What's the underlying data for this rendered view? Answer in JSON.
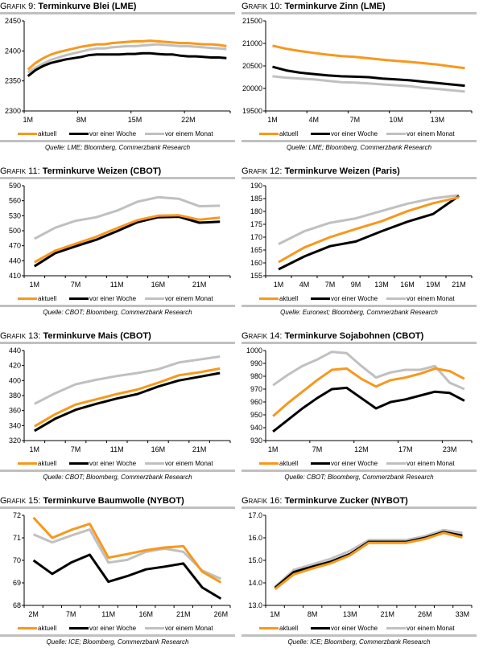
{
  "legend": {
    "series": [
      {
        "name": "aktuell",
        "color": "#f7981d"
      },
      {
        "name": "vor einer Woche",
        "color": "#000000"
      },
      {
        "name": "vor einem Monat",
        "color": "#c0c0c0"
      }
    ]
  },
  "chart_data": [
    {
      "id": "grafik9",
      "prefix": "Grafik 9:",
      "title": "Terminkurve Blei (LME)",
      "type": "line",
      "source": "Quelle: LME; Bloomberg, Commerzbank Research",
      "ylim": [
        2300,
        2450
      ],
      "yticks": [
        2300,
        2350,
        2400,
        2450
      ],
      "yformat": 0,
      "xtick_labels": [
        "1M",
        "8M",
        "15M",
        "22M"
      ],
      "xtick_index": [
        0,
        7,
        14,
        21
      ],
      "n": 27,
      "series": [
        {
          "name": "aktuell",
          "values": [
            2369,
            2380,
            2388,
            2394,
            2398,
            2401,
            2404,
            2407,
            2409,
            2411,
            2411,
            2413,
            2414,
            2415,
            2416,
            2416,
            2417,
            2416,
            2415,
            2414,
            2413,
            2413,
            2412,
            2411,
            2411,
            2410,
            2408
          ]
        },
        {
          "name": "vor einer Woche",
          "values": [
            2358,
            2368,
            2375,
            2380,
            2383,
            2386,
            2388,
            2390,
            2393,
            2394,
            2394,
            2394,
            2394,
            2395,
            2395,
            2396,
            2396,
            2395,
            2394,
            2394,
            2392,
            2391,
            2391,
            2390,
            2389,
            2389,
            2388
          ]
        },
        {
          "name": "vor einem Monat",
          "values": [
            2364,
            2372,
            2379,
            2385,
            2389,
            2393,
            2396,
            2399,
            2402,
            2404,
            2404,
            2406,
            2407,
            2408,
            2408,
            2409,
            2410,
            2411,
            2410,
            2409,
            2408,
            2408,
            2407,
            2406,
            2405,
            2404,
            2403
          ]
        }
      ]
    },
    {
      "id": "grafik10",
      "prefix": "Grafik 10:",
      "title": "Terminkurve Zinn (LME)",
      "type": "line",
      "source": "Quelle: LME; Bloomberg, Commerzbank Research",
      "ylim": [
        19500,
        21500
      ],
      "yticks": [
        19500,
        20000,
        20500,
        21000,
        21500
      ],
      "yformat": 0,
      "xtick_labels": [
        "1M",
        "4M",
        "7M",
        "10M",
        "13M"
      ],
      "xtick_index": [
        0,
        3,
        6,
        9,
        12
      ],
      "n": 15,
      "series": [
        {
          "name": "aktuell",
          "values": [
            20950,
            20880,
            20830,
            20790,
            20750,
            20720,
            20700,
            20670,
            20640,
            20610,
            20590,
            20560,
            20530,
            20490,
            20450
          ]
        },
        {
          "name": "vor einer Woche",
          "values": [
            20480,
            20400,
            20350,
            20320,
            20290,
            20270,
            20260,
            20250,
            20220,
            20200,
            20180,
            20150,
            20120,
            20090,
            20060
          ]
        },
        {
          "name": "vor einem Monat",
          "values": [
            20270,
            20240,
            20220,
            20200,
            20170,
            20140,
            20130,
            20110,
            20090,
            20070,
            20050,
            20010,
            19990,
            19960,
            19930
          ]
        }
      ]
    },
    {
      "id": "grafik11",
      "prefix": "Grafik 11:",
      "title": "Terminkurve Weizen (CBOT)",
      "type": "line",
      "source": "Quelle: CBOT; Bloomberg, Commerzbank Research",
      "ylim": [
        410,
        590
      ],
      "yticks": [
        410,
        440,
        470,
        500,
        530,
        560,
        590
      ],
      "yformat": 0,
      "xtick_labels": [
        "1M",
        "7M",
        "11M",
        "16M",
        "21M"
      ],
      "xtick_index": [
        0,
        2,
        4,
        6,
        8
      ],
      "n": 10,
      "series": [
        {
          "name": "aktuell",
          "values": [
            437,
            460,
            474,
            488,
            505,
            521,
            530,
            531,
            522,
            526
          ]
        },
        {
          "name": "vor einer Woche",
          "values": [
            429,
            455,
            469,
            482,
            499,
            517,
            527,
            528,
            516,
            518
          ]
        },
        {
          "name": "vor einem Monat",
          "values": [
            484,
            506,
            520,
            527,
            540,
            558,
            567,
            564,
            549,
            550
          ]
        }
      ]
    },
    {
      "id": "grafik12",
      "prefix": "Grafik 12:",
      "title": "Terminkurve Weizen (Paris)",
      "type": "line",
      "source": "Quelle: Euronext; Bloomberg, Commerzbank Research",
      "ylim": [
        155,
        190
      ],
      "yticks": [
        155,
        160,
        165,
        170,
        175,
        180,
        185,
        190
      ],
      "yformat": 0,
      "xtick_labels": [
        "1M",
        "4M",
        "7M",
        "9M",
        "13M",
        "16M",
        "19M",
        "21M"
      ],
      "xtick_index": [
        0,
        1,
        2,
        3,
        4,
        5,
        6,
        7
      ],
      "n": 8,
      "series": [
        {
          "name": "aktuell",
          "values": [
            160.3,
            166.0,
            170.0,
            173.2,
            176.2,
            180.1,
            183.2,
            185.5
          ]
        },
        {
          "name": "vor einer Woche",
          "values": [
            157.5,
            162.5,
            166.5,
            168.3,
            172.3,
            176.0,
            179.0,
            186.0
          ]
        },
        {
          "name": "vor einem Monat",
          "values": [
            167.3,
            172.3,
            175.6,
            177.3,
            180.2,
            183.0,
            185.1,
            186.3
          ]
        }
      ]
    },
    {
      "id": "grafik13",
      "prefix": "Grafik 13:",
      "title": "Terminkurve Mais (CBOT)",
      "type": "line",
      "source": "Quelle: CBOT; Bloomberg, Commerzbank Research",
      "ylim": [
        320,
        440
      ],
      "yticks": [
        320,
        340,
        360,
        380,
        400,
        420,
        440
      ],
      "yformat": 0,
      "xtick_labels": [
        "1M",
        "7M",
        "11M",
        "16M",
        "21M"
      ],
      "xtick_index": [
        0,
        2,
        4,
        6,
        8
      ],
      "n": 10,
      "series": [
        {
          "name": "aktuell",
          "values": [
            339,
            355,
            368,
            375,
            382,
            388,
            397,
            407,
            411,
            416
          ]
        },
        {
          "name": "vor einer Woche",
          "values": [
            333,
            349,
            361,
            369,
            376,
            382,
            392,
            400,
            405,
            410
          ]
        },
        {
          "name": "vor einem Monat",
          "values": [
            369,
            383,
            395,
            401,
            406,
            410,
            415,
            424,
            428,
            432
          ]
        }
      ]
    },
    {
      "id": "grafik14",
      "prefix": "Grafik 14:",
      "title": "Terminkurve Sojabohnen (CBOT)",
      "type": "line",
      "source": "Quelle: CBOT; Bloomberg, Commerzbank Research",
      "ylim": [
        930,
        1000
      ],
      "yticks": [
        930,
        940,
        950,
        960,
        970,
        980,
        990,
        1000
      ],
      "yformat": 0,
      "xtick_labels": [
        "1M",
        "7M",
        "12M",
        "17M",
        "23M"
      ],
      "xtick_index": [
        0,
        3,
        6,
        9,
        12
      ],
      "n": 14,
      "series": [
        {
          "name": "aktuell",
          "values": [
            949,
            959,
            968,
            977,
            985,
            986,
            978,
            972,
            977,
            979,
            982,
            986,
            984,
            978
          ]
        },
        {
          "name": "vor einer Woche",
          "values": [
            937,
            946,
            955,
            963,
            970,
            971,
            963,
            955,
            960,
            962,
            965,
            968,
            967,
            961
          ]
        },
        {
          "name": "vor einem Monat",
          "values": [
            973,
            981,
            988,
            993,
            999,
            998,
            988,
            979,
            983,
            985,
            985,
            988,
            975,
            970
          ]
        }
      ]
    },
    {
      "id": "grafik15",
      "prefix": "Grafik 15:",
      "title": "Terminkurve Baumwolle (NYBOT)",
      "type": "line",
      "source": "Quelle: ICE; Bloomberg, Commerzbank Research",
      "ylim": [
        68,
        72
      ],
      "yticks": [
        68,
        69,
        70,
        71,
        72
      ],
      "yformat": 0,
      "xtick_labels": [
        "2M",
        "7M",
        "11M",
        "16M",
        "21M",
        "26M"
      ],
      "xtick_index": [
        0,
        2,
        4,
        6,
        8,
        10
      ],
      "n": 11,
      "series": [
        {
          "name": "aktuell",
          "values": [
            71.9,
            71.0,
            71.35,
            71.62,
            70.12,
            70.28,
            70.45,
            70.57,
            70.63,
            69.5,
            69.02
          ]
        },
        {
          "name": "vor einer Woche",
          "values": [
            70.0,
            69.4,
            69.9,
            70.25,
            69.05,
            69.3,
            69.6,
            69.72,
            69.86,
            68.8,
            68.3
          ]
        },
        {
          "name": "vor einem Monat",
          "values": [
            71.15,
            70.8,
            71.1,
            71.37,
            69.9,
            70.02,
            70.38,
            70.52,
            70.38,
            69.55,
            69.18
          ]
        }
      ]
    },
    {
      "id": "grafik16",
      "prefix": "Grafik 16:",
      "title": "Terminkurve Zucker (NYBOT)",
      "type": "line",
      "source": "Quelle: ICE; Bloomberg, Commerzbank Research",
      "ylim": [
        13.0,
        17.0
      ],
      "yticks": [
        13.0,
        14.0,
        15.0,
        16.0,
        17.0
      ],
      "yformat": 1,
      "xtick_labels": [
        "1M",
        "8M",
        "13M",
        "21M",
        "26M",
        "33M"
      ],
      "xtick_index": [
        0,
        2,
        4,
        6,
        8,
        10
      ],
      "n": 11,
      "series": [
        {
          "name": "aktuell",
          "values": [
            13.72,
            14.38,
            14.64,
            14.88,
            15.22,
            15.78,
            15.78,
            15.78,
            15.95,
            16.22,
            16.02
          ]
        },
        {
          "name": "vor einer Woche",
          "values": [
            13.78,
            14.48,
            14.72,
            14.95,
            15.28,
            15.82,
            15.82,
            15.82,
            16.0,
            16.26,
            16.1
          ]
        },
        {
          "name": "vor einem Monat",
          "values": [
            13.82,
            14.58,
            14.82,
            15.08,
            15.42,
            15.9,
            15.9,
            15.9,
            16.08,
            16.35,
            16.22
          ]
        }
      ]
    }
  ]
}
